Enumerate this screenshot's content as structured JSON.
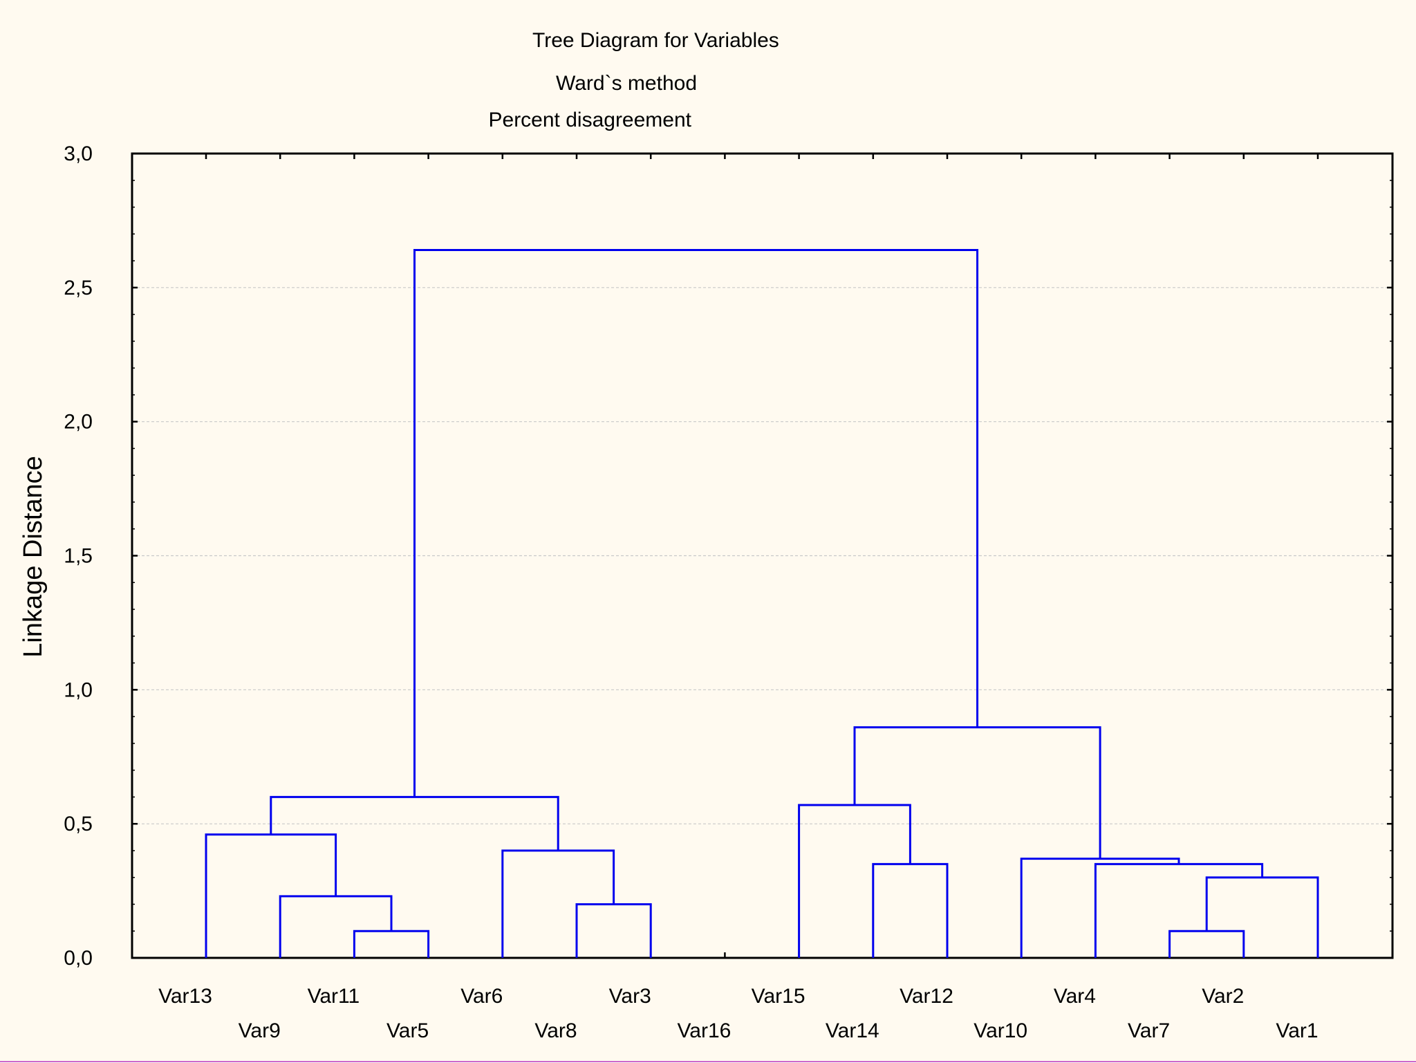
{
  "chart_data": {
    "type": "dendrogram",
    "title": "Tree Diagram for  Variables",
    "subtitle": "Ward`s method",
    "subtitle2": "Percent disagreement",
    "xlabel": "",
    "ylabel": "Linkage Distance",
    "ylim": [
      0,
      3
    ],
    "yticks": [
      "0,0",
      "0,5",
      "1,0",
      "1,5",
      "2,0",
      "2,5",
      "3,0"
    ],
    "ytick_values": [
      0,
      0.5,
      1.0,
      1.5,
      2.0,
      2.5,
      3.0
    ],
    "grid": true,
    "leaves": [
      "Var13",
      "Var9",
      "Var11",
      "Var5",
      "Var6",
      "Var8",
      "Var3",
      "Var16",
      "Var15",
      "Var14",
      "Var12",
      "Var10",
      "Var4",
      "Var7",
      "Var2",
      "Var1"
    ],
    "merges": [
      {
        "height": 0.1,
        "left": "Var11",
        "right": "Var5"
      },
      {
        "height": 0.23,
        "left": "Var9",
        "right": "(Var11,Var5)"
      },
      {
        "height": 0.46,
        "left": "Var13",
        "right": "(Var9,Var11,Var5)"
      },
      {
        "height": 0.2,
        "left": "Var8",
        "right": "Var3"
      },
      {
        "height": 0.4,
        "left": "Var6",
        "right": "(Var8,Var3)"
      },
      {
        "height": 0.6,
        "left": "(Var13..Var5)",
        "right": "(Var6,Var8,Var3)"
      },
      {
        "height": 0.35,
        "left": "Var14",
        "right": "Var12"
      },
      {
        "height": 0.57,
        "left": "Var15",
        "right": "(Var14,Var12)"
      },
      {
        "height": 0.1,
        "left": "Var7",
        "right": "Var2"
      },
      {
        "height": 0.3,
        "left": "(Var7,Var2)",
        "right": "Var1"
      },
      {
        "height": 0.35,
        "left": "Var4",
        "right": "(Var7,Var2,Var1)"
      },
      {
        "height": 0.37,
        "left": "Var10",
        "right": "(Var4,Var7,Var2,Var1)"
      },
      {
        "height": 0.86,
        "left": "(Var15,Var14,Var12)",
        "right": "(Var10..Var1)"
      },
      {
        "height": 2.64,
        "left": "(Var13..Var3)",
        "right": "(Var15..Var1)"
      }
    ],
    "colors": {
      "line": "#0000ee",
      "background": "#fffaf0",
      "bottom_border": "#cc66cc"
    }
  }
}
